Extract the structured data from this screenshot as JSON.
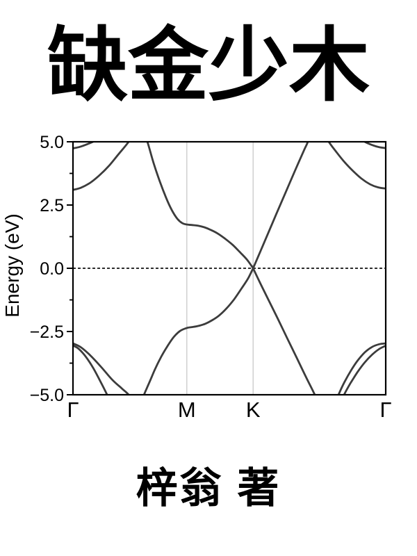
{
  "title": {
    "text": "缺金少木"
  },
  "author": {
    "text": "梓翁 著"
  },
  "chart_data": {
    "type": "line",
    "title": "",
    "xlabel": "",
    "ylabel": "Energy (eV)",
    "ylim": [
      -5.0,
      5.0
    ],
    "legend": "none",
    "grid": "vertical lines at high-symmetry k-points M and K",
    "fermi_level": 0.0,
    "fermi_line_style": "dashed",
    "y_ticks_major": [
      {
        "value": 5.0,
        "label": "5.0"
      },
      {
        "value": 2.5,
        "label": "2.5"
      },
      {
        "value": 0.0,
        "label": "0.0"
      },
      {
        "value": -2.5,
        "label": "−2.5"
      },
      {
        "value": -5.0,
        "label": "−5.0"
      }
    ],
    "y_ticks_minor": [
      3.75,
      1.25,
      -1.25,
      -3.75
    ],
    "k_path": [
      {
        "label": "Γ",
        "pos": 0.0
      },
      {
        "label": "M",
        "pos": 0.364
      },
      {
        "label": "K",
        "pos": 0.576
      },
      {
        "label": "Γ",
        "pos": 1.0
      }
    ],
    "gridlines_k": [
      0.364,
      0.576
    ],
    "colors": {
      "band": "#3c3c3c",
      "gridline": "#c9c9c9",
      "axis": "#000000",
      "fermi": "#111111",
      "text": "#000000"
    },
    "series": [
      {
        "name": "pi-star-conduction-band",
        "points": [
          [
            0.205,
            6.3
          ],
          [
            0.238,
            5.0
          ],
          [
            0.258,
            4.15
          ],
          [
            0.278,
            3.42
          ],
          [
            0.298,
            2.78
          ],
          [
            0.316,
            2.3
          ],
          [
            0.334,
            1.95
          ],
          [
            0.35,
            1.78
          ],
          [
            0.364,
            1.73
          ],
          [
            0.382,
            1.71
          ],
          [
            0.4,
            1.68
          ],
          [
            0.42,
            1.62
          ],
          [
            0.44,
            1.52
          ],
          [
            0.462,
            1.38
          ],
          [
            0.485,
            1.18
          ],
          [
            0.51,
            0.93
          ],
          [
            0.535,
            0.62
          ],
          [
            0.557,
            0.33
          ],
          [
            0.576,
            0.0
          ],
          [
            0.576,
            0.0
          ],
          [
            0.597,
            0.6
          ],
          [
            0.62,
            1.27
          ],
          [
            0.65,
            2.14
          ],
          [
            0.68,
            3.0
          ],
          [
            0.71,
            3.86
          ],
          [
            0.74,
            4.7
          ],
          [
            0.751,
            5.0
          ],
          [
            0.765,
            5.55
          ]
        ]
      },
      {
        "name": "pi-valence-band",
        "points": [
          [
            0.212,
            -5.5
          ],
          [
            0.227,
            -5.0
          ],
          [
            0.243,
            -4.55
          ],
          [
            0.262,
            -4.0
          ],
          [
            0.282,
            -3.5
          ],
          [
            0.302,
            -3.08
          ],
          [
            0.322,
            -2.72
          ],
          [
            0.342,
            -2.48
          ],
          [
            0.364,
            -2.36
          ],
          [
            0.384,
            -2.32
          ],
          [
            0.404,
            -2.27
          ],
          [
            0.424,
            -2.19
          ],
          [
            0.444,
            -2.06
          ],
          [
            0.466,
            -1.88
          ],
          [
            0.49,
            -1.6
          ],
          [
            0.515,
            -1.23
          ],
          [
            0.54,
            -0.78
          ],
          [
            0.56,
            -0.4
          ],
          [
            0.576,
            0.0
          ],
          [
            0.576,
            0.0
          ],
          [
            0.6,
            -0.62
          ],
          [
            0.625,
            -1.25
          ],
          [
            0.655,
            -2.0
          ],
          [
            0.685,
            -2.77
          ],
          [
            0.715,
            -3.53
          ],
          [
            0.745,
            -4.3
          ],
          [
            0.773,
            -5.0
          ],
          [
            0.786,
            -5.45
          ]
        ]
      },
      {
        "name": "sigma-valence-band-left-1",
        "points": [
          [
            0.0,
            -3.05
          ],
          [
            0.018,
            -3.18
          ],
          [
            0.04,
            -3.48
          ],
          [
            0.065,
            -3.95
          ],
          [
            0.088,
            -4.48
          ],
          [
            0.109,
            -5.0
          ],
          [
            0.121,
            -5.35
          ]
        ]
      },
      {
        "name": "sigma-valence-band-left-2",
        "points": [
          [
            0.0,
            -2.97
          ],
          [
            0.025,
            -3.12
          ],
          [
            0.055,
            -3.44
          ],
          [
            0.09,
            -3.9
          ],
          [
            0.125,
            -4.4
          ],
          [
            0.155,
            -4.74
          ],
          [
            0.178,
            -5.0
          ],
          [
            0.19,
            -5.28
          ]
        ]
      },
      {
        "name": "sigma-valence-band-right-1",
        "points": [
          [
            0.838,
            -5.35
          ],
          [
            0.849,
            -5.0
          ],
          [
            0.868,
            -4.5
          ],
          [
            0.89,
            -4.02
          ],
          [
            0.912,
            -3.62
          ],
          [
            0.935,
            -3.3
          ],
          [
            0.958,
            -3.1
          ],
          [
            0.98,
            -3.0
          ],
          [
            1.0,
            -2.97
          ]
        ]
      },
      {
        "name": "sigma-valence-band-right-2",
        "points": [
          [
            0.856,
            -5.35
          ],
          [
            0.867,
            -5.0
          ],
          [
            0.887,
            -4.55
          ],
          [
            0.91,
            -4.1
          ],
          [
            0.933,
            -3.72
          ],
          [
            0.956,
            -3.42
          ],
          [
            0.978,
            -3.2
          ],
          [
            1.0,
            -3.06
          ]
        ]
      },
      {
        "name": "sigma-star-band-left",
        "points": [
          [
            0.0,
            3.1
          ],
          [
            0.025,
            3.18
          ],
          [
            0.055,
            3.38
          ],
          [
            0.085,
            3.68
          ],
          [
            0.115,
            4.05
          ],
          [
            0.145,
            4.5
          ],
          [
            0.178,
            5.0
          ],
          [
            0.19,
            5.32
          ]
        ]
      },
      {
        "name": "sigma-star-band-right",
        "points": [
          [
            0.806,
            5.32
          ],
          [
            0.818,
            5.0
          ],
          [
            0.842,
            4.6
          ],
          [
            0.868,
            4.2
          ],
          [
            0.895,
            3.85
          ],
          [
            0.922,
            3.55
          ],
          [
            0.95,
            3.32
          ],
          [
            0.975,
            3.2
          ],
          [
            1.0,
            3.15
          ]
        ]
      },
      {
        "name": "upper-band-left-corner",
        "points": [
          [
            0.0,
            4.74
          ],
          [
            0.022,
            4.8
          ],
          [
            0.045,
            4.9
          ],
          [
            0.067,
            5.02
          ],
          [
            0.08,
            5.14
          ]
        ]
      },
      {
        "name": "upper-band-right-corner",
        "points": [
          [
            0.92,
            5.12
          ],
          [
            0.933,
            5.0
          ],
          [
            0.955,
            4.88
          ],
          [
            0.978,
            4.79
          ],
          [
            1.0,
            4.75
          ]
        ]
      }
    ]
  }
}
